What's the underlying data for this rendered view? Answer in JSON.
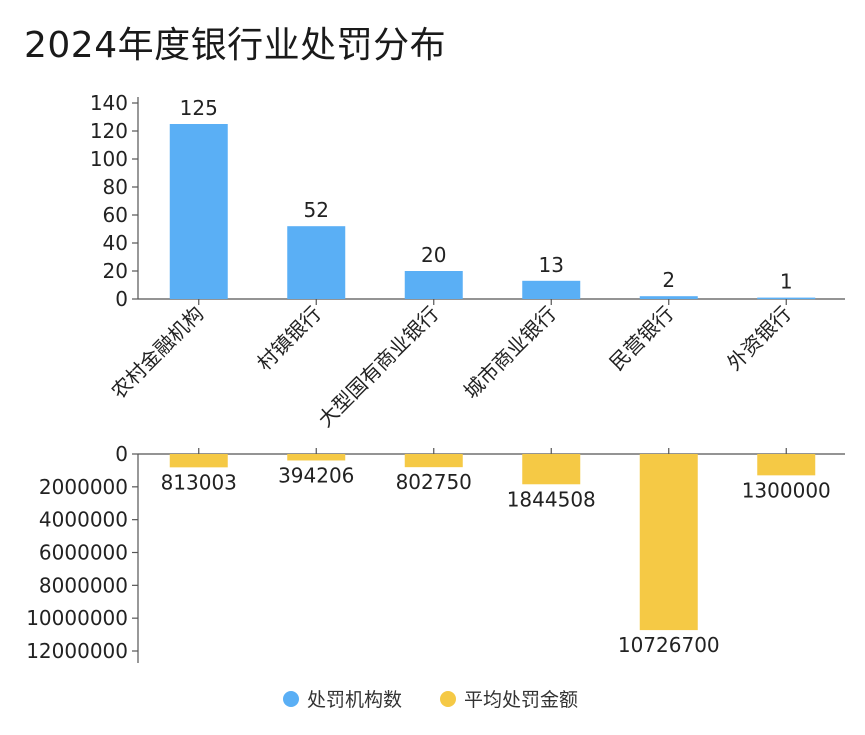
{
  "chart_data": {
    "title": "2024年度银行业处罚分布",
    "type": "bar",
    "categories": [
      "农村金融机构",
      "村镇银行",
      "大型国有商业银行",
      "城市商业银行",
      "民营银行",
      "外资银行"
    ],
    "series": [
      {
        "name": "处罚机构数",
        "values": [
          125,
          52,
          20,
          13,
          2,
          1
        ],
        "color": "#5aaff5",
        "ylim": [
          0,
          140
        ],
        "yticks": [
          0,
          20,
          40,
          60,
          80,
          100,
          120,
          140
        ],
        "ytick_labels": [
          "0",
          "20",
          "40",
          "60",
          "80",
          "100",
          "120",
          "140"
        ],
        "data_labels": [
          "125",
          "52",
          "20",
          "13",
          "2",
          "1"
        ]
      },
      {
        "name": "平均处罚金额",
        "values": [
          813003,
          394206,
          802750,
          1844508,
          10726700,
          1300000
        ],
        "color": "#f5c945",
        "ylim": [
          0,
          12000000
        ],
        "inverted": true,
        "yticks": [
          0,
          2000000,
          4000000,
          6000000,
          8000000,
          10000000,
          12000000
        ],
        "ytick_labels": [
          "0",
          "2000000",
          "4000000",
          "6000000",
          "8000000",
          "10000000",
          "12000000"
        ],
        "data_labels": [
          "813003",
          "394206",
          "802750",
          "1844508",
          "10726700",
          "1300000"
        ]
      }
    ],
    "legend": {
      "position": "bottom-center",
      "items": [
        {
          "label": "处罚机构数",
          "color": "#5aaff5"
        },
        {
          "label": "平均处罚金额",
          "color": "#f5c945"
        }
      ]
    },
    "grid": false
  }
}
